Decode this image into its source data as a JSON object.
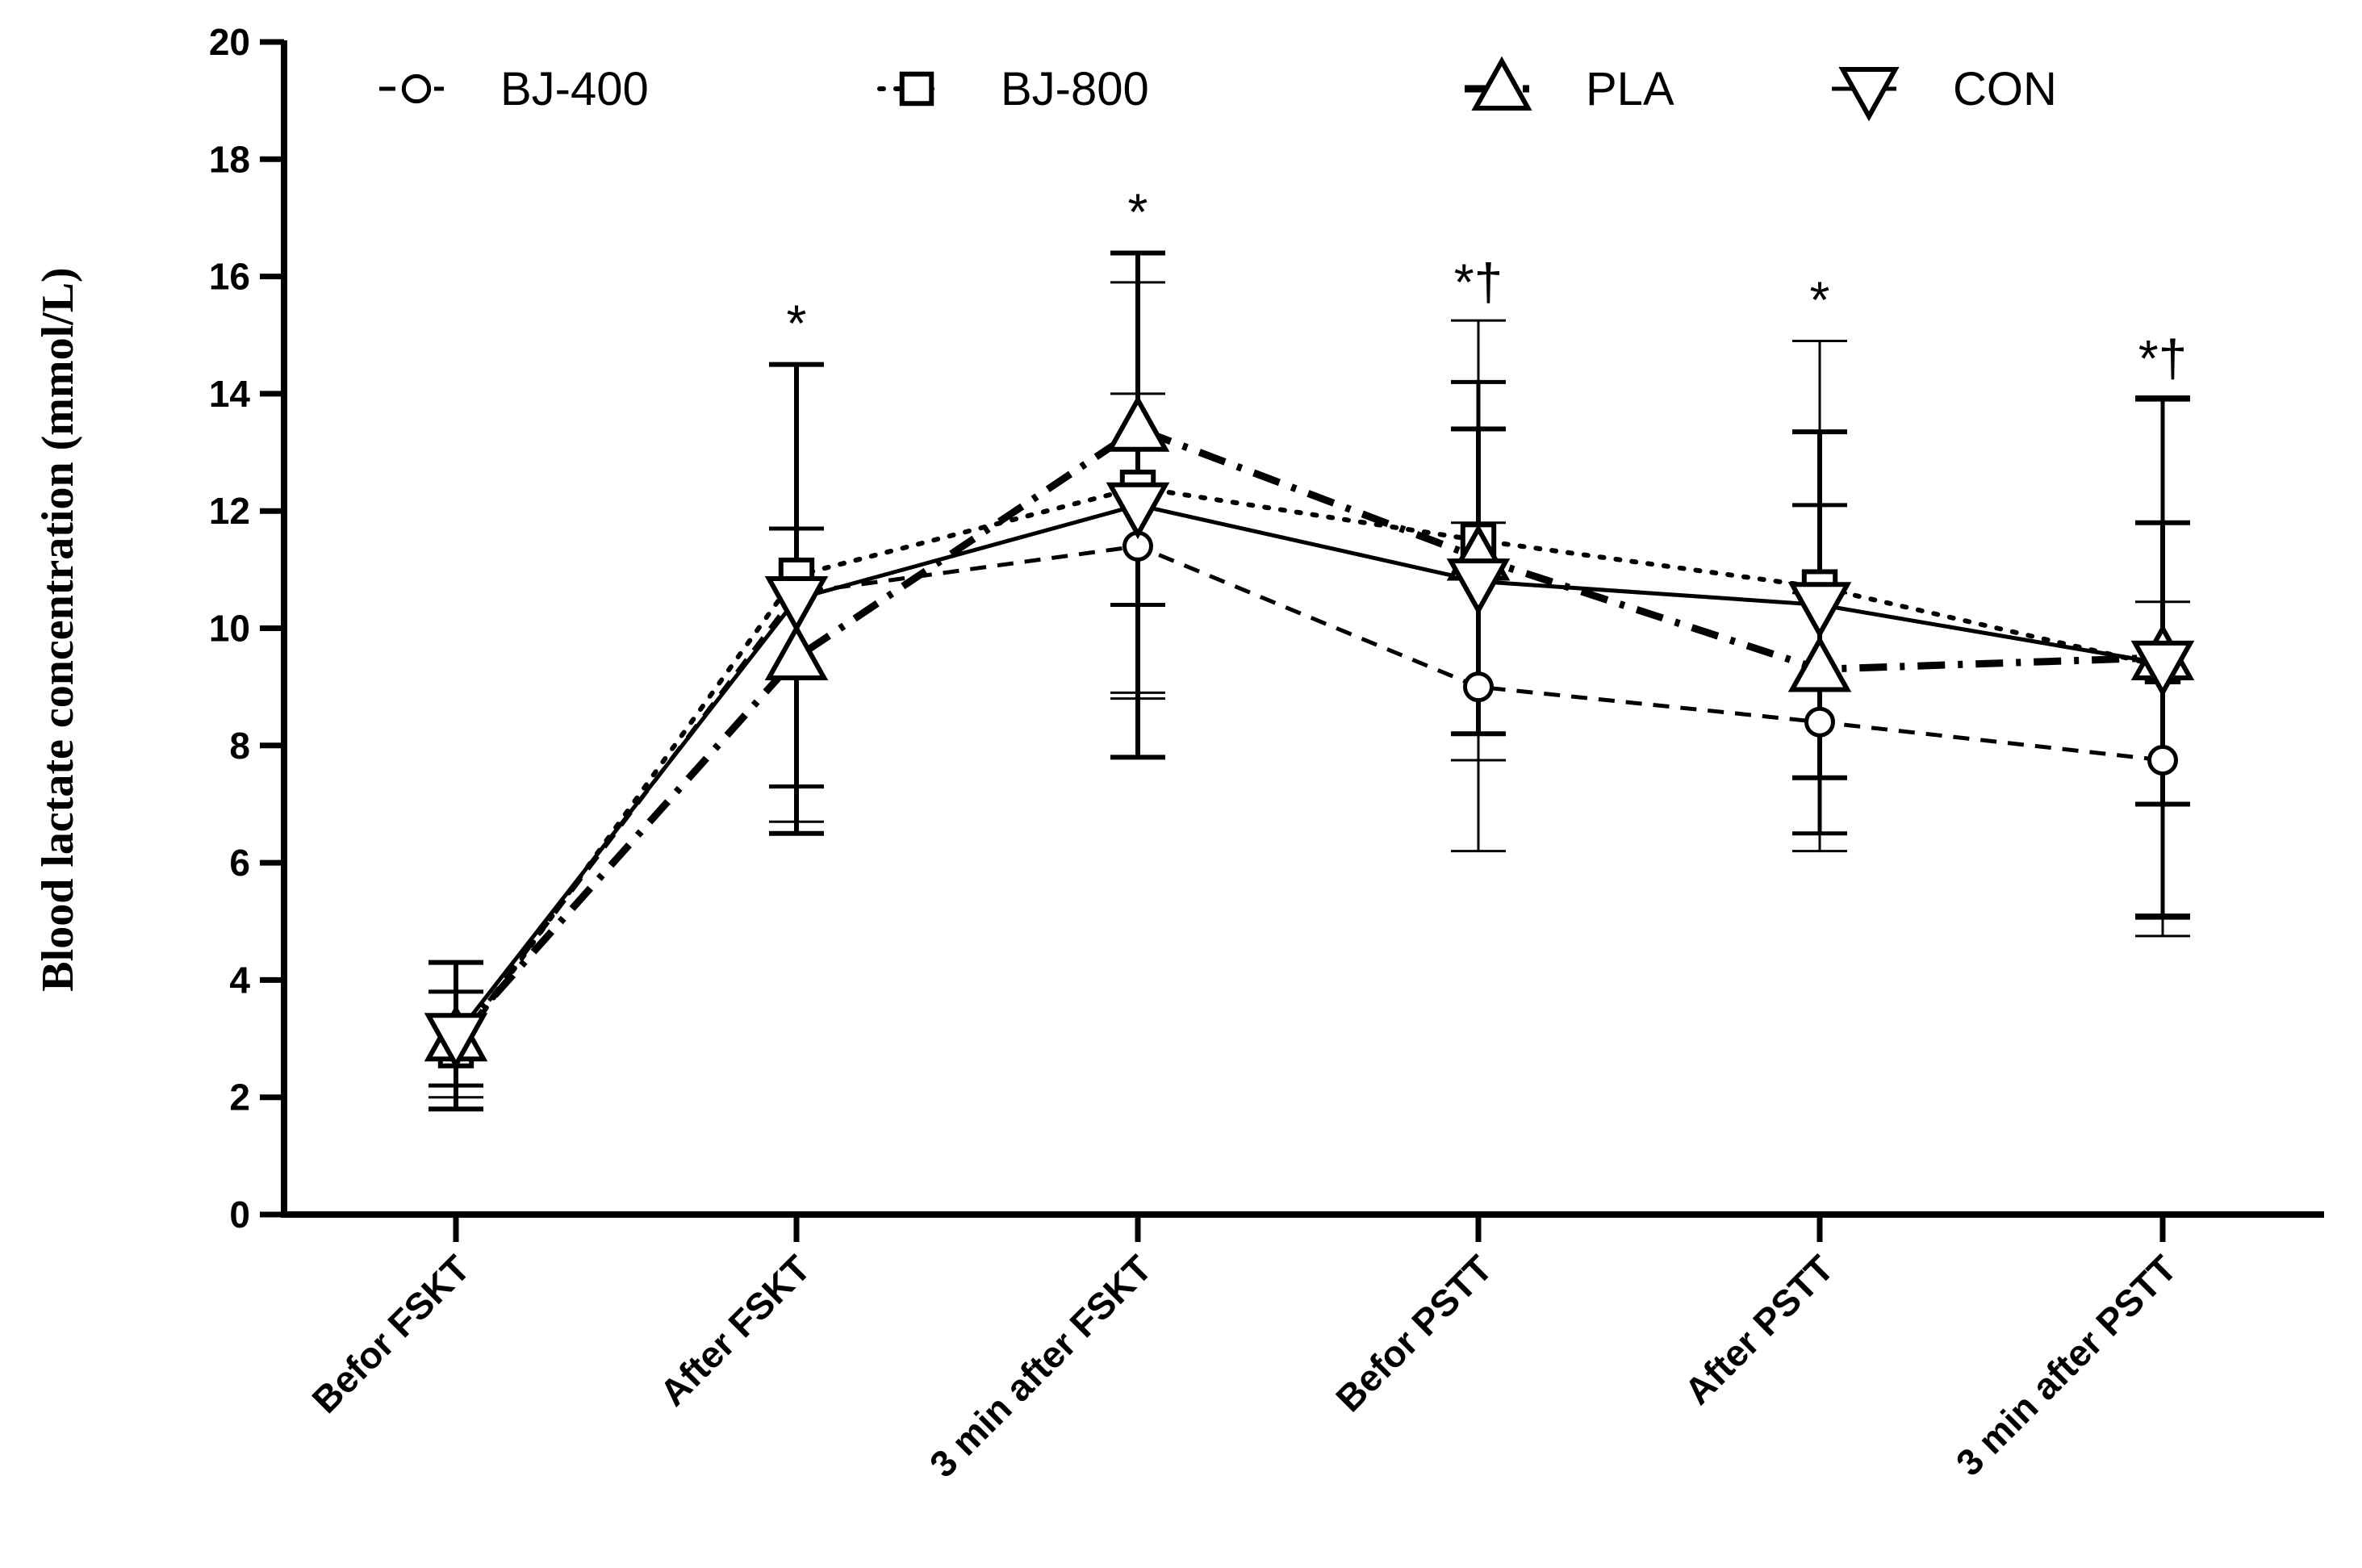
{
  "chart_data": {
    "type": "line",
    "title": "",
    "xlabel": "",
    "ylabel": "Blood lactate concentration (mmol/L)",
    "ylim": [
      0,
      20
    ],
    "yticks": [
      0,
      2,
      4,
      6,
      8,
      10,
      12,
      14,
      16,
      18,
      20
    ],
    "grid": false,
    "legend_position": "top",
    "categories": [
      "Befor FSKT",
      "After FSKT",
      "3 min after FSKT",
      "Befor PSTT",
      "After PSTT",
      "3 min after PSTT"
    ],
    "series": [
      {
        "name": "BJ-400",
        "marker": "circle",
        "line_style": "dashed",
        "values": [
          2.9,
          10.6,
          11.4,
          9.0,
          8.4,
          7.75
        ],
        "errors": [
          0.9,
          3.9,
          2.6,
          2.8,
          2.2,
          2.7
        ]
      },
      {
        "name": "BJ-800",
        "marker": "square",
        "line_style": "dotted",
        "values": [
          2.8,
          10.9,
          12.4,
          11.5,
          10.7,
          9.35
        ],
        "errors": [
          1.0,
          3.6,
          3.5,
          3.75,
          4.2,
          4.6
        ]
      },
      {
        "name": "PLA",
        "marker": "triangle-up",
        "line_style": "dash-dot",
        "values": [
          3.0,
          9.5,
          13.4,
          11.2,
          9.3,
          9.5
        ],
        "errors": [
          0.8,
          2.2,
          3.0,
          3.0,
          2.8,
          4.4
        ]
      },
      {
        "name": "CON",
        "marker": "triangle-down",
        "line_style": "solid",
        "values": [
          3.05,
          10.5,
          12.1,
          10.8,
          10.4,
          9.4
        ],
        "errors": [
          1.25,
          4.0,
          4.3,
          2.6,
          2.95,
          2.4
        ]
      }
    ],
    "annotations": [
      {
        "category_index": 1,
        "text": "*",
        "y": 14.9
      },
      {
        "category_index": 2,
        "text": "*",
        "y": 16.8
      },
      {
        "category_index": 3,
        "text": "*†",
        "y": 15.6
      },
      {
        "category_index": 4,
        "text": "*",
        "y": 15.3
      },
      {
        "category_index": 5,
        "text": "*†",
        "y": 14.3
      }
    ]
  }
}
